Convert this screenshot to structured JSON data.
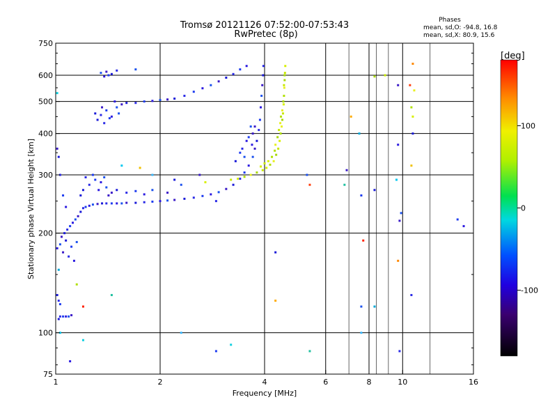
{
  "title_line1": "Tromsø 20121126 07:52:00-07:53:43",
  "title_line2": "RwPretec (8p)",
  "stats": {
    "heading": "Phases",
    "line_o": "mean, sd,O: -94.8, 16.8",
    "line_x": "mean, sd,X:  80.9, 15.6"
  },
  "colorbar": {
    "label": "[deg]",
    "ticks": [
      {
        "value": 100,
        "label": "100"
      },
      {
        "value": 0,
        "label": "0"
      },
      {
        "value": -100,
        "label": "-100"
      }
    ],
    "range": [
      -180,
      180
    ]
  },
  "chart_data": {
    "type": "scatter",
    "xlabel": "Frequency [MHz]",
    "ylabel": "Stationary phase Virtual Height [km]",
    "xscale": "log",
    "yscale": "log",
    "xlim": [
      1,
      16
    ],
    "ylim": [
      75,
      750
    ],
    "xticks": [
      {
        "value": 1,
        "label": "1"
      },
      {
        "value": 2,
        "label": "2"
      },
      {
        "value": 4,
        "label": "4"
      },
      {
        "value": 6,
        "label": "6"
      },
      {
        "value": 8,
        "label": "8"
      },
      {
        "value": 10,
        "label": "10"
      },
      {
        "value": 16,
        "label": "16"
      }
    ],
    "yticks": [
      {
        "value": 75,
        "label": "75"
      },
      {
        "value": 100,
        "label": "100"
      },
      {
        "value": 200,
        "label": "200"
      },
      {
        "value": 300,
        "label": "300"
      },
      {
        "value": 400,
        "label": "400"
      },
      {
        "value": 500,
        "label": "500"
      },
      {
        "value": 600,
        "label": "600"
      },
      {
        "value": 750,
        "label": "750"
      }
    ],
    "major_x_grid": [
      2,
      4,
      6,
      8,
      10
    ],
    "minor_x_grid": [
      7,
      8.4,
      9.1,
      12
    ],
    "major_y_grid": [
      100,
      200,
      300,
      400,
      500,
      600
    ],
    "minor_y_grid": [
      250
    ],
    "series": [
      {
        "points": [
          [
            1.02,
            110
          ],
          [
            1.03,
            112
          ],
          [
            1.05,
            112
          ],
          [
            1.07,
            112
          ],
          [
            1.09,
            112
          ],
          [
            1.11,
            113
          ],
          [
            1.01,
            130
          ],
          [
            1.02,
            125
          ],
          [
            1.03,
            122
          ],
          [
            1.01,
            180
          ],
          [
            1.03,
            185
          ],
          [
            1.05,
            175
          ],
          [
            1.07,
            190
          ],
          [
            1.09,
            170
          ],
          [
            1.11,
            182
          ],
          [
            1.13,
            165
          ],
          [
            1.15,
            188
          ],
          [
            1.04,
            195
          ],
          [
            1.06,
            200
          ],
          [
            1.08,
            205
          ],
          [
            1.1,
            210
          ],
          [
            1.12,
            215
          ],
          [
            1.14,
            220
          ],
          [
            1.16,
            225
          ],
          [
            1.18,
            232
          ],
          [
            1.2,
            238
          ],
          [
            1.22,
            240
          ],
          [
            1.25,
            242
          ],
          [
            1.28,
            244
          ],
          [
            1.32,
            245
          ],
          [
            1.36,
            246
          ],
          [
            1.4,
            246
          ],
          [
            1.45,
            246
          ],
          [
            1.5,
            246
          ],
          [
            1.55,
            246
          ],
          [
            1.6,
            247
          ],
          [
            1.7,
            247
          ],
          [
            1.8,
            248
          ],
          [
            1.9,
            249
          ],
          [
            2.0,
            250
          ],
          [
            2.1,
            251
          ],
          [
            2.2,
            252
          ],
          [
            2.35,
            254
          ],
          [
            2.5,
            256
          ],
          [
            2.65,
            259
          ],
          [
            2.8,
            262
          ],
          [
            2.95,
            266
          ],
          [
            3.1,
            272
          ],
          [
            3.25,
            280
          ],
          [
            3.4,
            292
          ],
          [
            3.5,
            305
          ],
          [
            3.6,
            320
          ],
          [
            3.7,
            340
          ],
          [
            3.75,
            360
          ],
          [
            3.8,
            380
          ],
          [
            3.85,
            410
          ],
          [
            3.88,
            440
          ],
          [
            3.9,
            480
          ],
          [
            3.92,
            520
          ],
          [
            3.94,
            560
          ],
          [
            3.96,
            600
          ],
          [
            3.97,
            640
          ],
          [
            3.4,
            350
          ],
          [
            3.55,
            380
          ],
          [
            3.65,
            420
          ],
          [
            3.7,
            400
          ],
          [
            3.3,
            330
          ],
          [
            3.45,
            360
          ],
          [
            3.6,
            390
          ],
          [
            3.68,
            370
          ],
          [
            3.5,
            340
          ],
          [
            3.75,
            420
          ],
          [
            1.2,
            270
          ],
          [
            1.25,
            280
          ],
          [
            1.3,
            290
          ],
          [
            1.35,
            285
          ],
          [
            1.4,
            275
          ],
          [
            1.45,
            265
          ],
          [
            1.18,
            260
          ],
          [
            1.22,
            295
          ],
          [
            1.28,
            300
          ],
          [
            1.33,
            270
          ],
          [
            1.38,
            295
          ],
          [
            1.42,
            260
          ],
          [
            1.5,
            270
          ],
          [
            1.6,
            265
          ],
          [
            1.7,
            268
          ],
          [
            1.8,
            262
          ],
          [
            1.9,
            270
          ],
          [
            2.1,
            265
          ],
          [
            1.3,
            460
          ],
          [
            1.35,
            455
          ],
          [
            1.4,
            470
          ],
          [
            1.45,
            450
          ],
          [
            1.5,
            480
          ],
          [
            1.55,
            490
          ],
          [
            1.32,
            440
          ],
          [
            1.38,
            430
          ],
          [
            1.43,
            445
          ],
          [
            1.48,
            500
          ],
          [
            1.52,
            460
          ],
          [
            1.36,
            480
          ],
          [
            1.6,
            495
          ],
          [
            1.7,
            495
          ],
          [
            1.8,
            500
          ],
          [
            1.9,
            502
          ],
          [
            2.0,
            505
          ],
          [
            2.1,
            507
          ],
          [
            2.2,
            510
          ],
          [
            2.35,
            520
          ],
          [
            2.5,
            535
          ],
          [
            2.65,
            548
          ],
          [
            2.8,
            560
          ],
          [
            2.95,
            575
          ],
          [
            3.1,
            590
          ],
          [
            3.25,
            605
          ],
          [
            3.4,
            625
          ],
          [
            3.55,
            640
          ],
          [
            1.35,
            610
          ],
          [
            1.4,
            615
          ],
          [
            1.45,
            605
          ],
          [
            1.5,
            620
          ],
          [
            1.42,
            600
          ],
          [
            1.38,
            595
          ],
          [
            1.7,
            625
          ],
          [
            1.01,
            360
          ],
          [
            1.02,
            340
          ],
          [
            1.03,
            300
          ],
          [
            1.05,
            260
          ],
          [
            1.07,
            240
          ],
          [
            2.3,
            280
          ],
          [
            2.6,
            300
          ],
          [
            2.2,
            290
          ],
          [
            2.9,
            250
          ],
          [
            7.6,
            260
          ],
          [
            9.7,
            370
          ],
          [
            9.9,
            230
          ],
          [
            9.8,
            218
          ],
          [
            10.7,
            400
          ],
          [
            10.6,
            130
          ],
          [
            14.4,
            220
          ],
          [
            15.0,
            210
          ],
          [
            5.3,
            300
          ],
          [
            6.9,
            310
          ],
          [
            8.3,
            270
          ],
          [
            9.8,
            88
          ],
          [
            2.9,
            88
          ],
          [
            1.1,
            82
          ],
          [
            7.6,
            120
          ],
          [
            9.7,
            560
          ],
          [
            4.3,
            175
          ]
        ],
        "colors": [
          "#1a1ad8",
          "#2a2ae6",
          "#1e3cf0",
          "#2b1ae0",
          "#1c52ee",
          "#3a1ac8"
        ]
      },
      {
        "points": [
          [
            3.2,
            290
          ],
          [
            3.35,
            292
          ],
          [
            3.5,
            296
          ],
          [
            3.65,
            300
          ],
          [
            3.8,
            305
          ],
          [
            3.95,
            310
          ],
          [
            4.05,
            315
          ],
          [
            4.15,
            322
          ],
          [
            4.25,
            330
          ],
          [
            4.32,
            345
          ],
          [
            4.38,
            360
          ],
          [
            4.42,
            380
          ],
          [
            4.45,
            400
          ],
          [
            4.48,
            420
          ],
          [
            4.5,
            440
          ],
          [
            4.52,
            460
          ],
          [
            4.54,
            490
          ],
          [
            4.55,
            520
          ],
          [
            4.56,
            550
          ],
          [
            4.57,
            580
          ],
          [
            4.58,
            610
          ],
          [
            4.59,
            640
          ],
          [
            4.2,
            340
          ],
          [
            4.3,
            370
          ],
          [
            4.36,
            390
          ],
          [
            4.4,
            410
          ],
          [
            4.1,
            330
          ],
          [
            4.46,
            450
          ],
          [
            4.5,
            470
          ],
          [
            4.53,
            500
          ],
          [
            4.0,
            325
          ],
          [
            3.9,
            318
          ],
          [
            4.28,
            355
          ],
          [
            4.44,
            430
          ],
          [
            4.57,
            600
          ],
          [
            4.55,
            560
          ],
          [
            10.7,
            450
          ],
          [
            10.6,
            480
          ],
          [
            10.8,
            540
          ],
          [
            8.3,
            595
          ],
          [
            8.9,
            600
          ],
          [
            2.7,
            285
          ],
          [
            1.15,
            140
          ]
        ],
        "colors": [
          "#c8e800",
          "#d8f000",
          "#b0e000",
          "#e8f020",
          "#a8d80a"
        ]
      },
      {
        "points": [
          [
            1.03,
            100
          ],
          [
            1.01,
            530
          ],
          [
            1.9,
            300
          ],
          [
            1.02,
            155
          ],
          [
            1.45,
            130
          ],
          [
            1.55,
            320
          ],
          [
            3.2,
            92
          ],
          [
            7.6,
            100
          ],
          [
            8.3,
            120
          ],
          [
            5.4,
            88
          ],
          [
            9.6,
            290
          ],
          [
            1.2,
            95
          ],
          [
            2.3,
            100
          ],
          [
            7.5,
            400
          ],
          [
            6.8,
            280
          ]
        ],
        "colors": [
          "#00c8f0",
          "#10d0e0",
          "#3cb8ff",
          "#00a8d8",
          "#20c0a0"
        ]
      },
      {
        "points": [
          [
            1.2,
            120
          ],
          [
            10.7,
            650
          ],
          [
            10.6,
            320
          ],
          [
            4.3,
            125
          ],
          [
            5.4,
            280
          ],
          [
            7.7,
            190
          ],
          [
            9.7,
            165
          ],
          [
            1.75,
            315
          ],
          [
            7.1,
            450
          ],
          [
            10.5,
            560
          ]
        ],
        "colors": [
          "#ff2000",
          "#ff8800",
          "#f0c000",
          "#ffaa00",
          "#ff4010"
        ]
      }
    ]
  }
}
